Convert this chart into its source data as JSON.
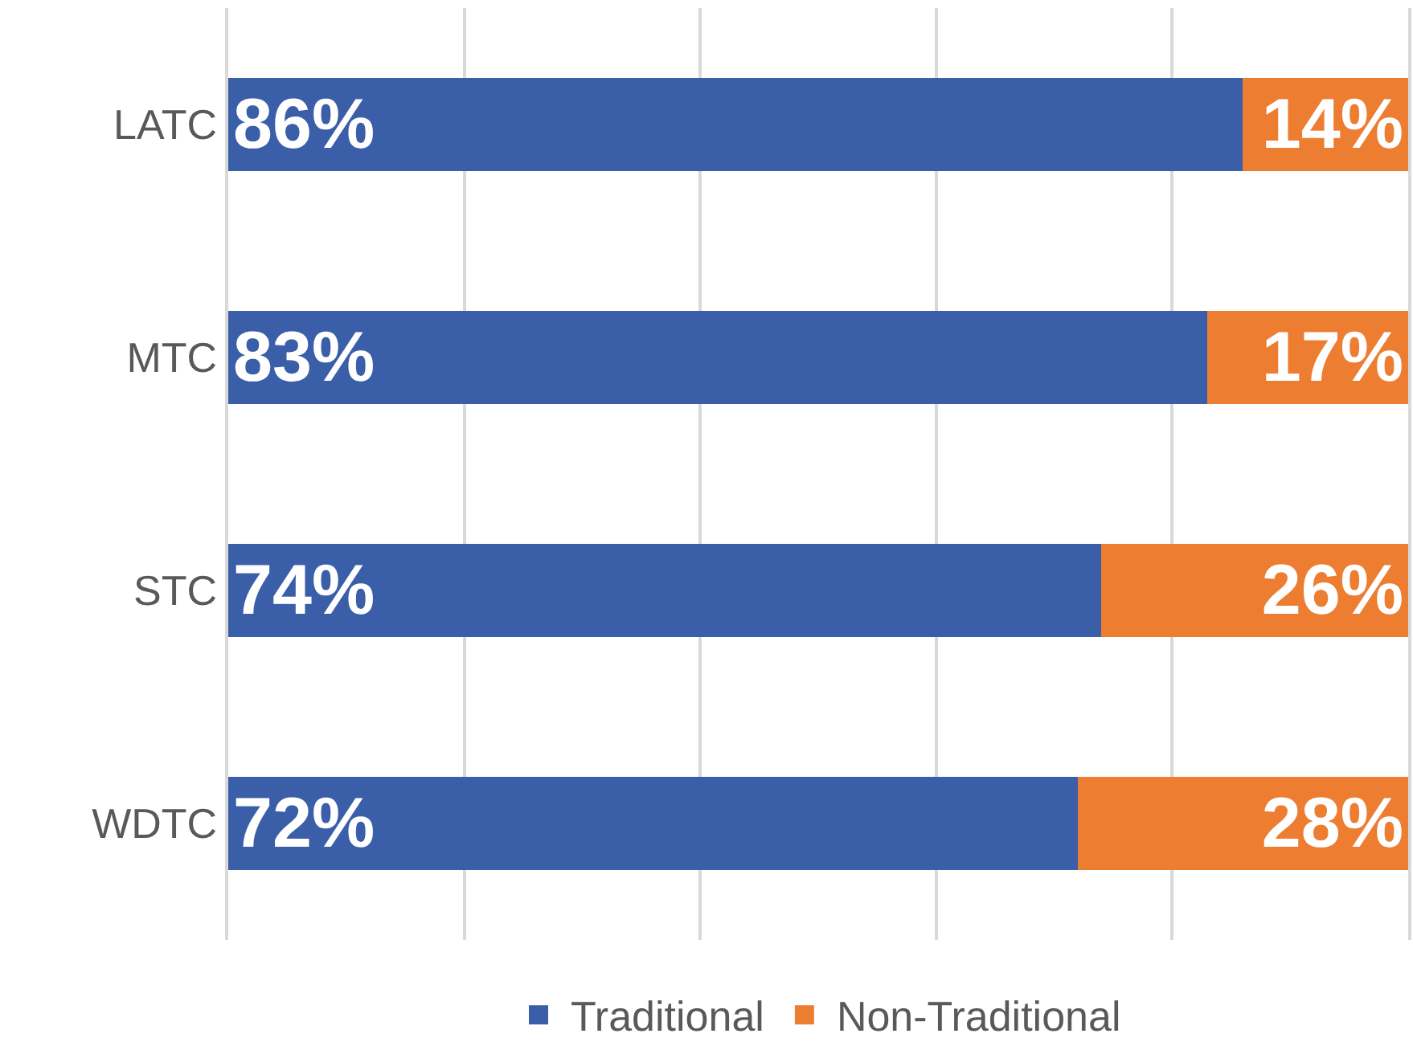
{
  "chart_data": {
    "type": "bar",
    "orientation": "horizontal",
    "stacked": true,
    "categories": [
      "LATC",
      "MTC",
      "STC",
      "WDTC"
    ],
    "series": [
      {
        "name": "Traditional",
        "color": "#3a5fa8",
        "values": [
          86,
          83,
          74,
          72
        ],
        "value_labels": [
          "86%",
          "83%",
          "74%",
          "72%"
        ]
      },
      {
        "name": "Non-Traditional",
        "color": "#ed7d31",
        "values": [
          14,
          17,
          26,
          28
        ],
        "value_labels": [
          "14%",
          "17%",
          "26%",
          "28%"
        ]
      }
    ],
    "xlim": [
      0,
      100
    ],
    "xticks": [
      {
        "value": 0,
        "label": null
      },
      {
        "value": 20,
        "label": null
      },
      {
        "value": 40,
        "label": null
      },
      {
        "value": 60,
        "label": null
      },
      {
        "value": 80,
        "label": null
      },
      {
        "value": 100,
        "label": null
      }
    ],
    "grid": "x",
    "legend": "bottom",
    "tick_labels": "y"
  }
}
